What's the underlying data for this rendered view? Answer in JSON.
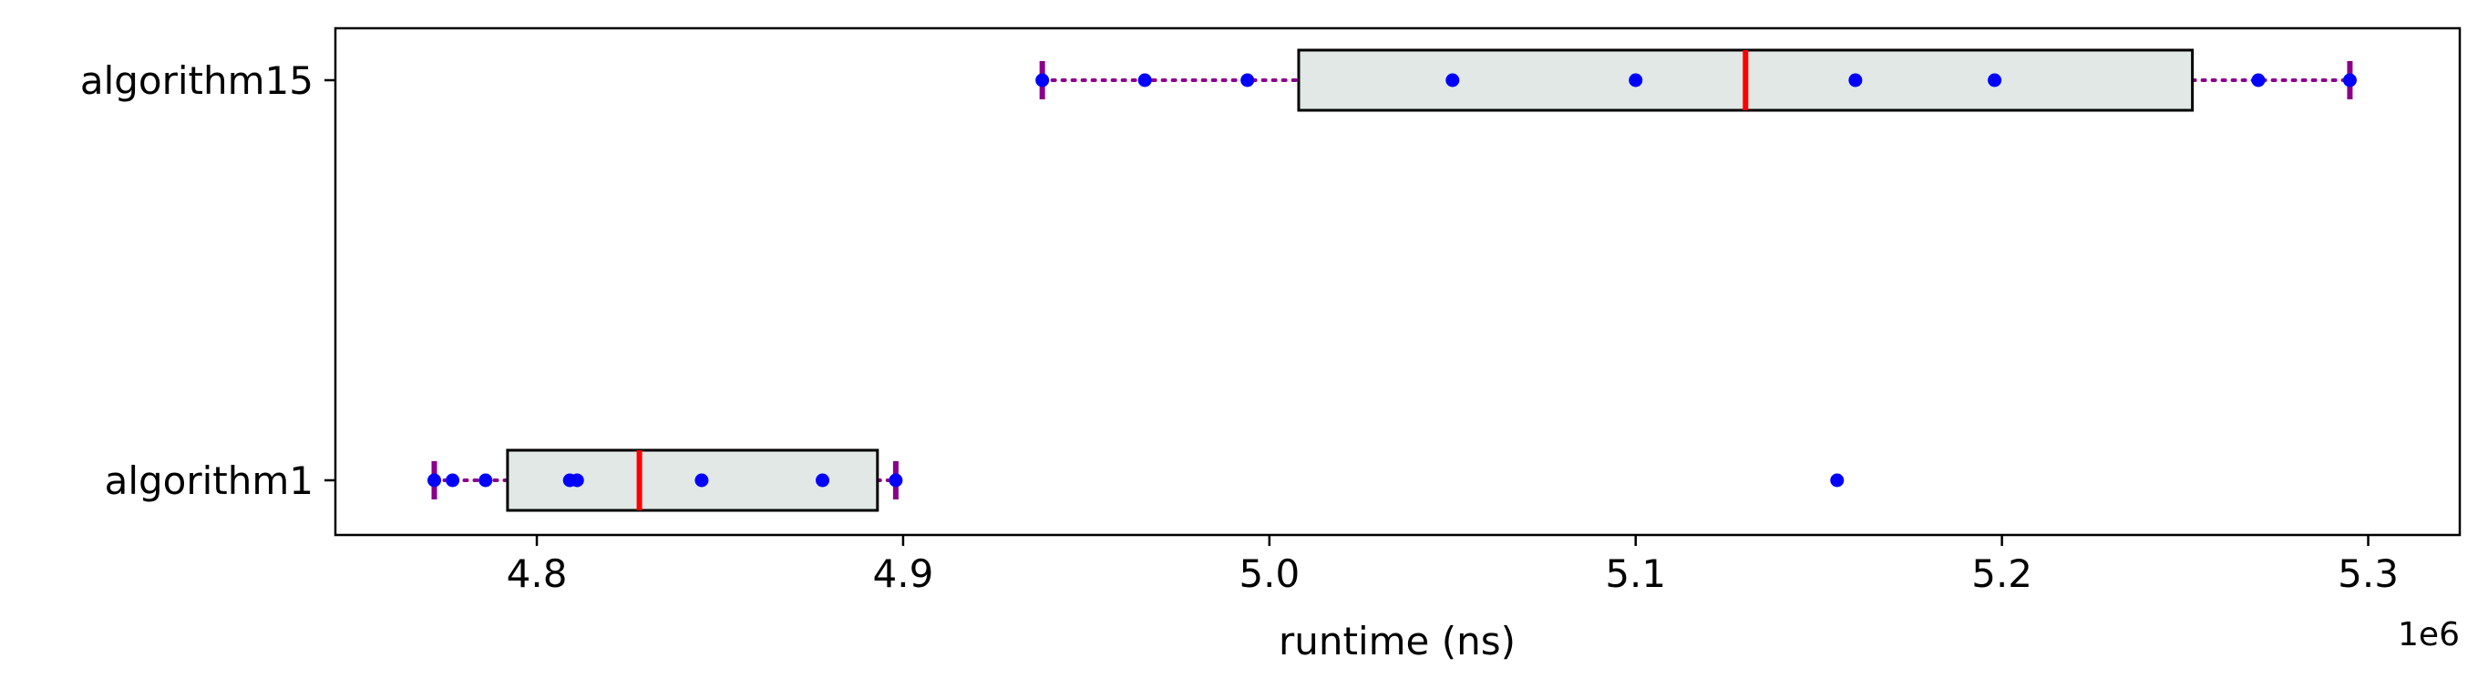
{
  "chart_data": {
    "type": "boxplot",
    "orientation": "horizontal",
    "xlabel": "runtime (ns)",
    "x_offset_label": "1e6",
    "x_scale_factor": 1000000,
    "xlim": [
      4.745,
      5.325
    ],
    "xticks": [
      4.8,
      4.9,
      5.0,
      5.1,
      5.2,
      5.3
    ],
    "xtick_labels": [
      "4.8",
      "4.9",
      "5.0",
      "5.1",
      "5.2",
      "5.3"
    ],
    "grid": false,
    "colors": {
      "box_fill": "#e1e8e6",
      "box_edge": "#000000",
      "median": "#ff0000",
      "whisker": "#8b008b",
      "cap": "#8b008b",
      "points": "#0000ff"
    },
    "series": [
      {
        "name": "algorithm1",
        "q1": 4.792,
        "median": 4.828,
        "q3": 4.893,
        "whisker_low": 4.772,
        "whisker_high": 4.898,
        "points": [
          4.772,
          4.777,
          4.786,
          4.809,
          4.811,
          4.845,
          4.878,
          4.898,
          5.155
        ]
      },
      {
        "name": "algorithm15",
        "q1": 5.008,
        "median": 5.13,
        "q3": 5.252,
        "whisker_low": 4.938,
        "whisker_high": 5.295,
        "points": [
          4.938,
          4.966,
          4.994,
          5.05,
          5.1,
          5.16,
          5.198,
          5.27,
          5.295
        ]
      }
    ]
  }
}
